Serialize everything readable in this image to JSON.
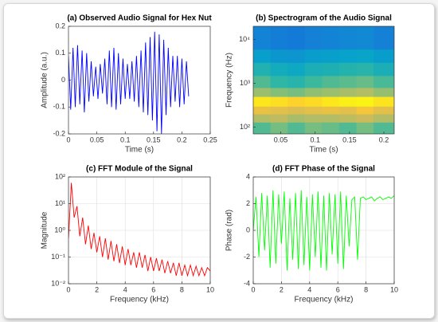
{
  "chart_data": [
    {
      "type": "line",
      "title": "(a) Observed Audio Signal for Hex Nut",
      "x_label": "Time (s)",
      "y_label": "Amplitude (a.u.)",
      "x": [
        0,
        0.004,
        0.008,
        0.012,
        0.016,
        0.02,
        0.024,
        0.028,
        0.032,
        0.036,
        0.04,
        0.044,
        0.048,
        0.052,
        0.056,
        0.06,
        0.064,
        0.068,
        0.072,
        0.076,
        0.08,
        0.084,
        0.088,
        0.092,
        0.096,
        0.1,
        0.104,
        0.108,
        0.112,
        0.116,
        0.12,
        0.124,
        0.128,
        0.132,
        0.136,
        0.14,
        0.144,
        0.148,
        0.152,
        0.156,
        0.16,
        0.164,
        0.168,
        0.172,
        0.176,
        0.18,
        0.184,
        0.188,
        0.192,
        0.196,
        0.2,
        0.204,
        0.208,
        0.212
      ],
      "series": [
        {
          "color": "#0000ff",
          "values": [
            0.09,
            -0.11,
            0.12,
            -0.1,
            0.13,
            -0.09,
            0.11,
            -0.12,
            0.1,
            -0.08,
            0.07,
            -0.06,
            0.05,
            -0.07,
            0.06,
            -0.05,
            0.08,
            -0.09,
            0.11,
            -0.1,
            0.12,
            -0.11,
            0.1,
            -0.09,
            0.08,
            -0.07,
            0.06,
            -0.07,
            0.07,
            -0.08,
            0.09,
            -0.1,
            0.11,
            -0.12,
            0.14,
            -0.13,
            0.16,
            -0.15,
            0.18,
            -0.19,
            0.17,
            -0.2,
            0.15,
            -0.13,
            0.12,
            -0.1,
            0.09,
            -0.08,
            0.09,
            -0.1,
            0.08,
            -0.09,
            0.07,
            -0.06
          ]
        }
      ],
      "xlim": [
        0,
        0.25
      ],
      "xticks": [
        0,
        0.05,
        0.1,
        0.15,
        0.2,
        0.25
      ],
      "ylim": [
        -0.2,
        0.2
      ],
      "yticks": [
        -0.2,
        -0.1,
        0,
        0.1,
        0.2
      ],
      "grid": false
    },
    {
      "type": "heatmap",
      "title": "(b) Spectrogram of the Audio Signal",
      "x_label": "Time (s)",
      "y_label": "Frequency (Hz)",
      "xbins": [
        0.01,
        0.035,
        0.06,
        0.085,
        0.11,
        0.135,
        0.16,
        0.185,
        0.215
      ],
      "ybins": [
        70,
        130,
        200,
        300,
        500,
        800,
        1500,
        3000,
        6000,
        20000
      ],
      "values": [
        [
          0.55,
          0.6,
          0.55,
          0.6,
          0.58,
          0.55,
          0.6,
          0.55
        ],
        [
          0.7,
          0.72,
          0.68,
          0.7,
          0.7,
          0.72,
          0.74,
          0.7
        ],
        [
          0.82,
          0.8,
          0.78,
          0.8,
          0.82,
          0.8,
          0.85,
          0.8
        ],
        [
          0.95,
          0.93,
          0.9,
          0.92,
          0.95,
          0.97,
          0.98,
          0.94
        ],
        [
          0.66,
          0.62,
          0.6,
          0.64,
          0.66,
          0.68,
          0.7,
          0.65
        ],
        [
          0.55,
          0.5,
          0.48,
          0.52,
          0.55,
          0.56,
          0.58,
          0.54
        ],
        [
          0.46,
          0.42,
          0.4,
          0.44,
          0.45,
          0.47,
          0.48,
          0.44
        ],
        [
          0.36,
          0.33,
          0.32,
          0.35,
          0.36,
          0.37,
          0.38,
          0.35
        ],
        [
          0.26,
          0.24,
          0.23,
          0.25,
          0.26,
          0.27,
          0.28,
          0.25
        ]
      ],
      "colormap": [
        "#352a87",
        "#0f5cdd",
        "#1481d6",
        "#06a4ca",
        "#2eb7a4",
        "#87bf77",
        "#d1bb59",
        "#fec832",
        "#f9fb0e"
      ],
      "xlim": [
        0.01,
        0.215
      ],
      "xticks": [
        0.05,
        0.1,
        0.15,
        0.2
      ],
      "ylim": [
        70,
        20000
      ],
      "ylog": true,
      "yticks": [
        {
          "value": 100,
          "label": "10²"
        },
        {
          "value": 1000,
          "label": "10³"
        },
        {
          "value": 10000,
          "label": "10⁴"
        }
      ]
    },
    {
      "type": "line",
      "title": "(c) FFT Module of the Signal",
      "x_label": "Frequency (kHz)",
      "y_label": "Magnitude",
      "x": [
        0,
        0.2,
        0.4,
        0.6,
        0.8,
        1,
        1.2,
        1.4,
        1.6,
        1.8,
        2,
        2.2,
        2.4,
        2.6,
        2.8,
        3,
        3.2,
        3.4,
        3.6,
        3.8,
        4,
        4.2,
        4.4,
        4.6,
        4.8,
        5,
        5.2,
        5.4,
        5.6,
        5.8,
        6,
        6.2,
        6.4,
        6.6,
        6.8,
        7,
        7.2,
        7.4,
        7.6,
        7.8,
        8,
        8.2,
        8.4,
        8.6,
        8.8,
        9,
        9.2,
        9.4,
        9.6,
        9.8,
        10
      ],
      "series": [
        {
          "color": "#ff0000",
          "values": [
            0.5,
            60,
            3,
            8,
            0.6,
            3,
            0.3,
            1.5,
            0.2,
            0.8,
            0.15,
            0.6,
            0.1,
            0.5,
            0.08,
            0.4,
            0.07,
            0.3,
            0.06,
            0.25,
            0.05,
            0.2,
            0.05,
            0.15,
            0.04,
            0.15,
            0.04,
            0.12,
            0.03,
            0.1,
            0.03,
            0.09,
            0.03,
            0.08,
            0.025,
            0.07,
            0.025,
            0.06,
            0.02,
            0.06,
            0.02,
            0.05,
            0.02,
            0.05,
            0.02,
            0.045,
            0.02,
            0.04,
            0.02,
            0.04,
            0.03
          ]
        }
      ],
      "xlim": [
        0,
        10
      ],
      "xticks": [
        0,
        2,
        4,
        6,
        8,
        10
      ],
      "ylim": [
        0.01,
        100
      ],
      "ylog": true,
      "yticks": [
        {
          "value": 0.01,
          "label": "10⁻²"
        },
        {
          "value": 0.1,
          "label": "10⁻¹"
        },
        {
          "value": 1,
          "label": "10⁰"
        },
        {
          "value": 10,
          "label": "10¹"
        },
        {
          "value": 100,
          "label": "10²"
        }
      ],
      "grid": true
    },
    {
      "type": "line",
      "title": "(d) FFT Phase of the Signal",
      "x_label": "Frequency (kHz)",
      "y_label": "Phase (rad)",
      "x": [
        0,
        0.2,
        0.4,
        0.6,
        0.8,
        1,
        1.2,
        1.4,
        1.6,
        1.8,
        2,
        2.2,
        2.4,
        2.6,
        2.8,
        3,
        3.2,
        3.4,
        3.6,
        3.8,
        4,
        4.2,
        4.4,
        4.6,
        4.8,
        5,
        5.2,
        5.4,
        5.6,
        5.8,
        6,
        6.2,
        6.4,
        6.6,
        6.8,
        7,
        7.2,
        7.4,
        7.6,
        7.8,
        8,
        8.2,
        8.4,
        8.6,
        8.8,
        9,
        9.2,
        9.4,
        9.6,
        9.8,
        10
      ],
      "series": [
        {
          "color": "#00ff00",
          "values": [
            0,
            2.5,
            -2,
            2.8,
            -1.5,
            2.6,
            -2.8,
            3,
            -2.5,
            2.7,
            -1,
            2.9,
            -3,
            2.4,
            -2.2,
            2.8,
            -2.9,
            3,
            -2.6,
            2.5,
            -3,
            2.7,
            -2,
            2.9,
            -2.8,
            2.6,
            -3,
            2.8,
            -1.8,
            2.7,
            -2.5,
            2.9,
            -2.9,
            2.6,
            -1.2,
            2.3,
            2.5,
            -2.2,
            2.4,
            2.5,
            2.3,
            2.4,
            2.5,
            2.2,
            2.4,
            2.5,
            2.3,
            2.4,
            2.5,
            2.4,
            2.6
          ]
        }
      ],
      "xlim": [
        0,
        10
      ],
      "xticks": [
        0,
        2,
        4,
        6,
        8,
        10
      ],
      "ylim": [
        -4,
        4
      ],
      "yticks": [
        -4,
        -2,
        0,
        2,
        4
      ],
      "grid": true
    }
  ]
}
